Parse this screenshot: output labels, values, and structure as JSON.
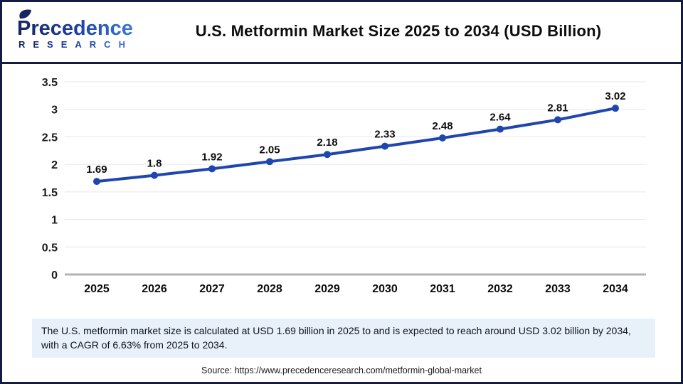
{
  "header": {
    "logo": {
      "name": "Precedence",
      "subname": "RESEARCH"
    },
    "title": "U.S. Metformin Market Size 2025 to 2034 (USD Billion)"
  },
  "chart_data": {
    "type": "line",
    "title": "U.S. Metformin Market Size 2025 to 2034 (USD Billion)",
    "xlabel": "",
    "ylabel": "",
    "categories": [
      "2025",
      "2026",
      "2027",
      "2028",
      "2029",
      "2030",
      "2031",
      "2032",
      "2033",
      "2034"
    ],
    "values": [
      1.69,
      1.8,
      1.92,
      2.05,
      2.18,
      2.33,
      2.48,
      2.64,
      2.81,
      3.02
    ],
    "labels": [
      "1.69",
      "1.8",
      "1.92",
      "2.05",
      "2.18",
      "2.33",
      "2.48",
      "2.64",
      "2.81",
      "3.02"
    ],
    "ylim": [
      0,
      3.5
    ],
    "ytick_values": [
      0,
      0.5,
      1,
      1.5,
      2,
      2.5,
      3,
      3.5
    ],
    "ytick_labels": [
      "0",
      "0.5",
      "1",
      "1.5",
      "2",
      "2.5",
      "3",
      "3.5"
    ],
    "grid": true,
    "legend": false,
    "line_color": "#1e46ad"
  },
  "footnote": {
    "text": "The U.S. metformin market size is calculated at USD 1.69 billion in 2025 to and is expected to reach around USD 3.02 billion by 2034, with a CAGR of 6.63% from 2025 to 2034."
  },
  "source": {
    "text": "Source: https://www.precedenceresearch.com/metformin-global-market"
  },
  "colors": {
    "accent_blue": "#1e46ad",
    "border_navy": "#131b43",
    "note_background": "#e8f0fa",
    "gridline": "#e7e7e7",
    "axis_line": "#b3b3b3",
    "logo_navy": "#16265e",
    "logo_blue": "#3b78e0"
  }
}
